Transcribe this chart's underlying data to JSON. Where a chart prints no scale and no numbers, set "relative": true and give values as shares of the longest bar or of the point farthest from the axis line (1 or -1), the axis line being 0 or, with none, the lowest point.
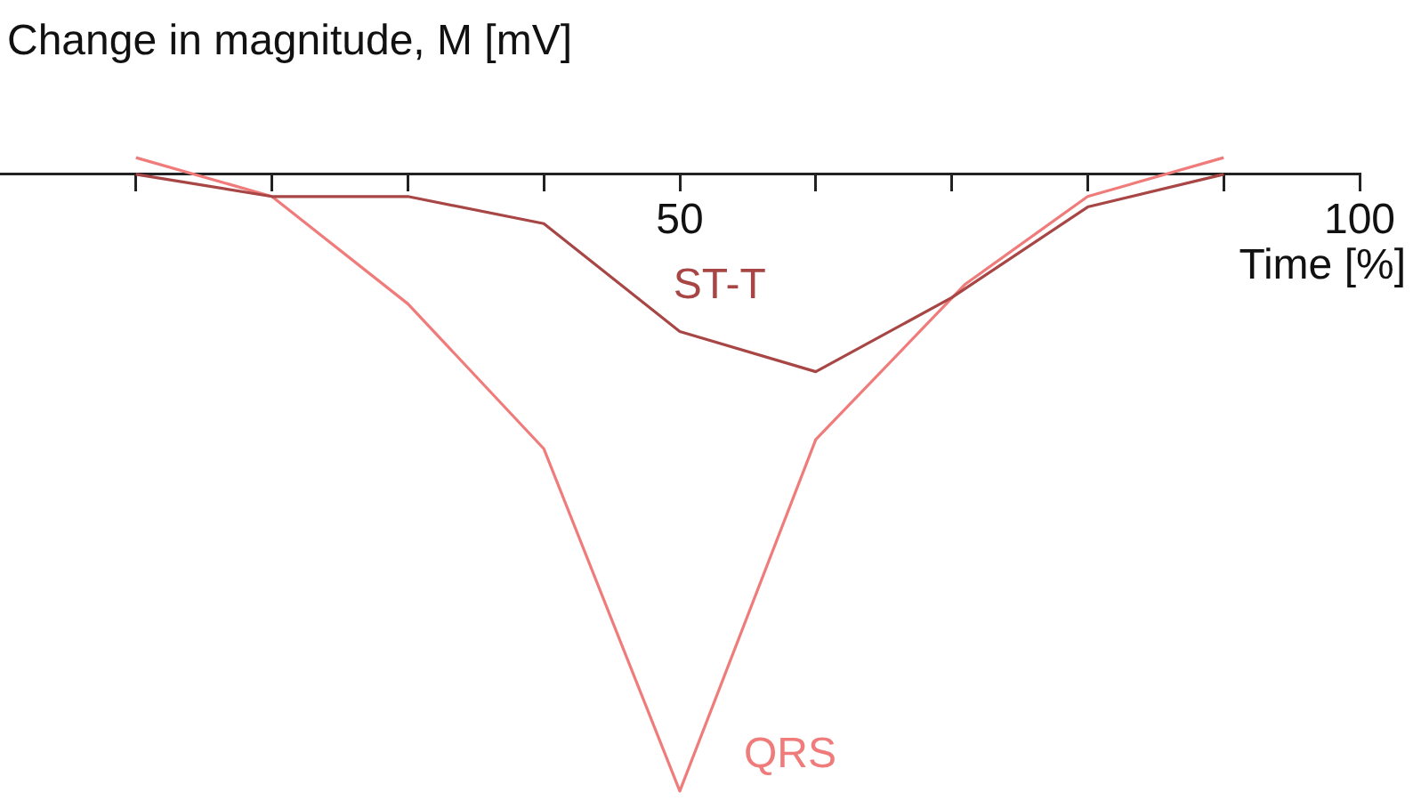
{
  "chart_data": {
    "type": "line",
    "ylabel": "Change in magnitude, M [mV]",
    "xlabel": "Time [%]",
    "relative": true,
    "grid": false,
    "legend": false,
    "marker": "none",
    "xlim": [
      0,
      100
    ],
    "xticks": [
      {
        "value": 10,
        "label": null
      },
      {
        "value": 20,
        "label": null
      },
      {
        "value": 30,
        "label": null
      },
      {
        "value": 40,
        "label": null
      },
      50,
      {
        "value": 60,
        "label": null
      },
      {
        "value": 70,
        "label": null
      },
      {
        "value": 80,
        "label": null
      },
      {
        "value": 90,
        "label": null
      },
      100
    ],
    "series": [
      {
        "name": "ST-T",
        "color": "#a84545",
        "x": [
          10,
          20,
          30,
          40,
          50,
          60,
          70,
          80,
          90
        ],
        "values": [
          0,
          -0.036,
          -0.036,
          -0.08,
          -0.255,
          -0.32,
          -0.2,
          -0.053,
          0
        ]
      },
      {
        "name": "QRS",
        "color": "#f07b7b",
        "x": [
          10,
          20,
          30,
          40,
          50,
          60,
          71,
          80,
          90
        ],
        "values": [
          0.027,
          -0.036,
          -0.21,
          -0.445,
          -1,
          -0.43,
          -0.178,
          -0.036,
          0.027
        ]
      }
    ]
  }
}
